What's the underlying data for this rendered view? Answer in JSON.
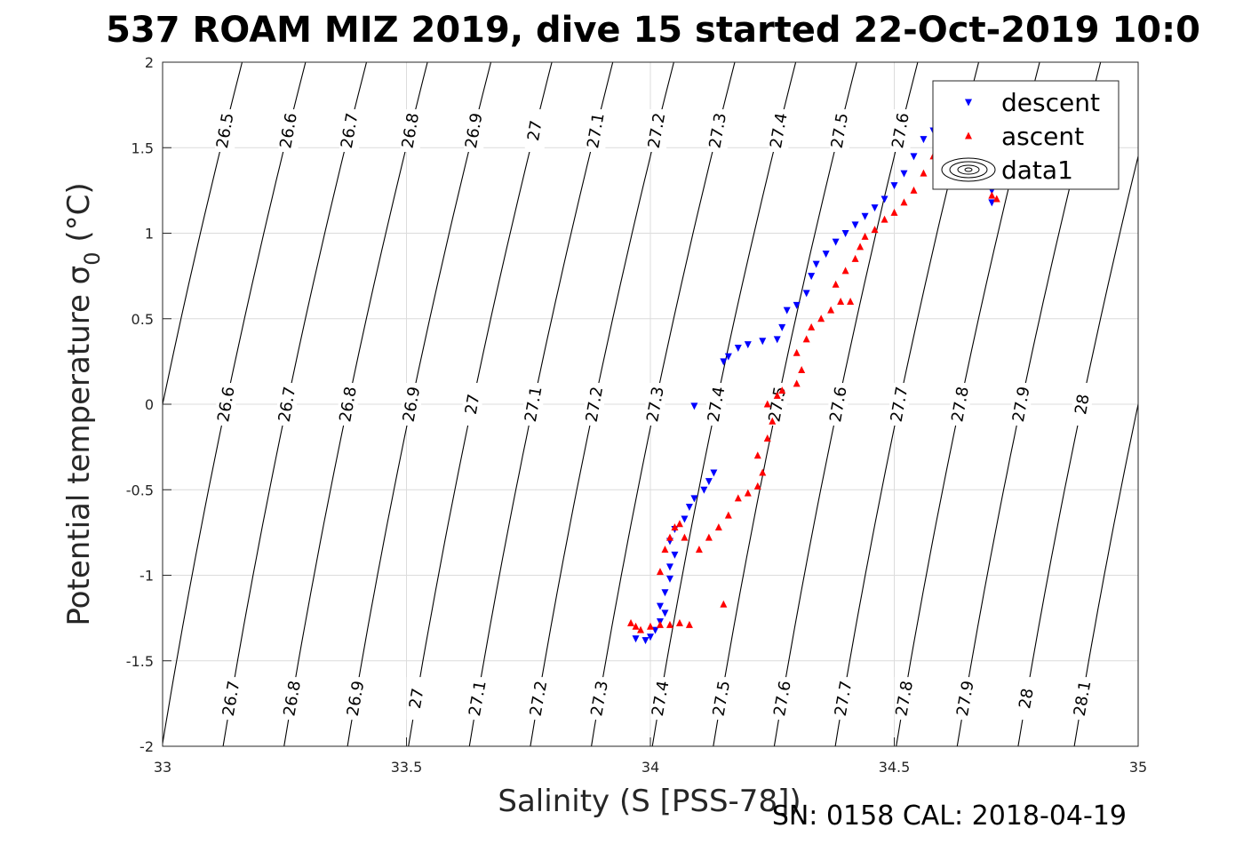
{
  "chart_data": {
    "type": "scatter",
    "title": "537 ROAM MIZ 2019, dive 15 started 22-Oct-2019 10:0",
    "xlabel": "Salinity (S [PSS-78])",
    "ylabel": "Potential temperature",
    "ylabel_sym": "σ",
    "ylabel_sub": "0",
    "ylabel_unit": "(°C)",
    "xlim": [
      33,
      35
    ],
    "ylim": [
      -2,
      2
    ],
    "xticks": [
      "33",
      "33.5",
      "34",
      "34.5",
      "35"
    ],
    "yticks": [
      "-2",
      "-1.5",
      "-1",
      "-0.5",
      "0",
      "0.5",
      "1",
      "1.5",
      "2"
    ],
    "grid": true,
    "legend_position": "top-right",
    "footer": "SN: 0158  CAL: 2018-04-19",
    "legend": [
      {
        "label": "descent",
        "marker": "triangle-down",
        "color": "#0000ff"
      },
      {
        "label": "ascent",
        "marker": "triangle-up",
        "color": "#ff0000"
      },
      {
        "label": "data1",
        "marker": "contour",
        "color": "#000000"
      }
    ],
    "contours": [
      {
        "label": "26.5",
        "x_at_t0": 33.0
      },
      {
        "label": "26.6",
        "x_at_t0": 33.13
      },
      {
        "label": "26.7",
        "x_at_t0": 33.255
      },
      {
        "label": "26.8",
        "x_at_t0": 33.38
      },
      {
        "label": "26.9",
        "x_at_t0": 33.51
      },
      {
        "label": "27",
        "x_at_t0": 33.635
      },
      {
        "label": "27.1",
        "x_at_t0": 33.76
      },
      {
        "label": "27.2",
        "x_at_t0": 33.885
      },
      {
        "label": "27.3",
        "x_at_t0": 34.01
      },
      {
        "label": "27.4",
        "x_at_t0": 34.135
      },
      {
        "label": "27.5",
        "x_at_t0": 34.26
      },
      {
        "label": "27.6",
        "x_at_t0": 34.385
      },
      {
        "label": "27.7",
        "x_at_t0": 34.51
      },
      {
        "label": "27.8",
        "x_at_t0": 34.635
      },
      {
        "label": "27.9",
        "x_at_t0": 34.76
      },
      {
        "label": "28",
        "x_at_t0": 34.885
      },
      {
        "label": "28.1",
        "x_at_t0": 35.0
      }
    ],
    "series": [
      {
        "name": "descent",
        "color": "#0000ff",
        "marker": "triangle-down",
        "points": [
          [
            33.97,
            -1.37
          ],
          [
            33.99,
            -1.38
          ],
          [
            34.0,
            -1.36
          ],
          [
            34.01,
            -1.32
          ],
          [
            34.02,
            -1.27
          ],
          [
            34.03,
            -1.22
          ],
          [
            34.02,
            -1.18
          ],
          [
            34.03,
            -1.1
          ],
          [
            34.04,
            -1.02
          ],
          [
            34.04,
            -0.95
          ],
          [
            34.05,
            -0.88
          ],
          [
            34.04,
            -0.8
          ],
          [
            34.05,
            -0.73
          ],
          [
            34.07,
            -0.67
          ],
          [
            34.08,
            -0.6
          ],
          [
            34.09,
            -0.55
          ],
          [
            34.11,
            -0.5
          ],
          [
            34.12,
            -0.45
          ],
          [
            34.13,
            -0.4
          ],
          [
            34.09,
            -0.01
          ],
          [
            34.15,
            0.25
          ],
          [
            34.16,
            0.28
          ],
          [
            34.18,
            0.33
          ],
          [
            34.2,
            0.35
          ],
          [
            34.23,
            0.37
          ],
          [
            34.26,
            0.38
          ],
          [
            34.27,
            0.45
          ],
          [
            34.28,
            0.55
          ],
          [
            34.3,
            0.58
          ],
          [
            34.32,
            0.65
          ],
          [
            34.33,
            0.75
          ],
          [
            34.34,
            0.82
          ],
          [
            34.36,
            0.88
          ],
          [
            34.38,
            0.95
          ],
          [
            34.4,
            1.0
          ],
          [
            34.42,
            1.05
          ],
          [
            34.44,
            1.1
          ],
          [
            34.46,
            1.15
          ],
          [
            34.48,
            1.2
          ],
          [
            34.5,
            1.28
          ],
          [
            34.52,
            1.35
          ],
          [
            34.54,
            1.45
          ],
          [
            34.56,
            1.55
          ],
          [
            34.58,
            1.6
          ],
          [
            34.6,
            1.63
          ],
          [
            34.61,
            1.62
          ],
          [
            34.7,
            1.25
          ],
          [
            34.7,
            1.18
          ]
        ]
      },
      {
        "name": "ascent",
        "color": "#ff0000",
        "marker": "triangle-up",
        "points": [
          [
            33.96,
            -1.28
          ],
          [
            33.97,
            -1.3
          ],
          [
            33.98,
            -1.32
          ],
          [
            34.0,
            -1.3
          ],
          [
            34.02,
            -1.29
          ],
          [
            34.04,
            -1.29
          ],
          [
            34.06,
            -1.28
          ],
          [
            34.08,
            -1.29
          ],
          [
            34.15,
            -1.17
          ],
          [
            34.02,
            -0.98
          ],
          [
            34.03,
            -0.85
          ],
          [
            34.04,
            -0.78
          ],
          [
            34.05,
            -0.72
          ],
          [
            34.06,
            -0.7
          ],
          [
            34.07,
            -0.78
          ],
          [
            34.1,
            -0.85
          ],
          [
            34.12,
            -0.78
          ],
          [
            34.14,
            -0.72
          ],
          [
            34.16,
            -0.65
          ],
          [
            34.18,
            -0.55
          ],
          [
            34.2,
            -0.52
          ],
          [
            34.22,
            -0.48
          ],
          [
            34.23,
            -0.4
          ],
          [
            34.22,
            -0.3
          ],
          [
            34.24,
            -0.2
          ],
          [
            34.25,
            -0.1
          ],
          [
            34.24,
            0.0
          ],
          [
            34.26,
            0.05
          ],
          [
            34.27,
            0.08
          ],
          [
            34.3,
            0.12
          ],
          [
            34.31,
            0.2
          ],
          [
            34.3,
            0.3
          ],
          [
            34.32,
            0.38
          ],
          [
            34.33,
            0.45
          ],
          [
            34.35,
            0.5
          ],
          [
            34.37,
            0.55
          ],
          [
            34.39,
            0.6
          ],
          [
            34.41,
            0.6
          ],
          [
            34.38,
            0.7
          ],
          [
            34.4,
            0.78
          ],
          [
            34.42,
            0.85
          ],
          [
            34.43,
            0.92
          ],
          [
            34.44,
            0.98
          ],
          [
            34.46,
            1.02
          ],
          [
            34.48,
            1.08
          ],
          [
            34.5,
            1.12
          ],
          [
            34.52,
            1.18
          ],
          [
            34.54,
            1.25
          ],
          [
            34.56,
            1.35
          ],
          [
            34.58,
            1.45
          ],
          [
            34.6,
            1.52
          ],
          [
            34.62,
            1.55
          ],
          [
            34.64,
            1.57
          ],
          [
            34.7,
            1.22
          ],
          [
            34.71,
            1.2
          ]
        ]
      }
    ]
  }
}
